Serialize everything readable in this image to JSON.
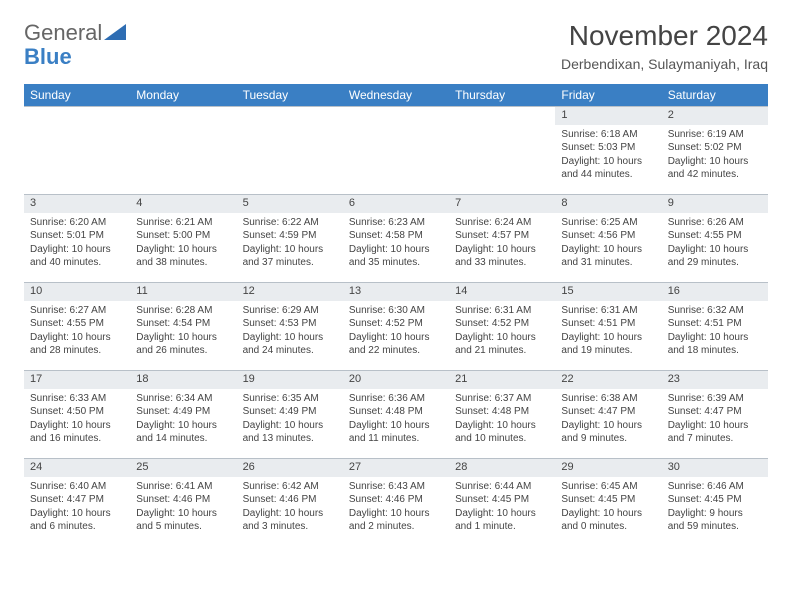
{
  "logo": {
    "text1": "General",
    "text2": "Blue"
  },
  "title": "November 2024",
  "location": "Derbendixan, Sulaymaniyah, Iraq",
  "colors": {
    "header_bg": "#3a7fc4",
    "header_text": "#ffffff",
    "daynum_bg": "#e9ecef",
    "border": "#b8c0c8",
    "text": "#444444",
    "background": "#ffffff"
  },
  "weekdays": [
    "Sunday",
    "Monday",
    "Tuesday",
    "Wednesday",
    "Thursday",
    "Friday",
    "Saturday"
  ],
  "weeks": [
    [
      null,
      null,
      null,
      null,
      null,
      {
        "n": "1",
        "sr": "Sunrise: 6:18 AM",
        "ss": "Sunset: 5:03 PM",
        "dl1": "Daylight: 10 hours",
        "dl2": "and 44 minutes."
      },
      {
        "n": "2",
        "sr": "Sunrise: 6:19 AM",
        "ss": "Sunset: 5:02 PM",
        "dl1": "Daylight: 10 hours",
        "dl2": "and 42 minutes."
      }
    ],
    [
      {
        "n": "3",
        "sr": "Sunrise: 6:20 AM",
        "ss": "Sunset: 5:01 PM",
        "dl1": "Daylight: 10 hours",
        "dl2": "and 40 minutes."
      },
      {
        "n": "4",
        "sr": "Sunrise: 6:21 AM",
        "ss": "Sunset: 5:00 PM",
        "dl1": "Daylight: 10 hours",
        "dl2": "and 38 minutes."
      },
      {
        "n": "5",
        "sr": "Sunrise: 6:22 AM",
        "ss": "Sunset: 4:59 PM",
        "dl1": "Daylight: 10 hours",
        "dl2": "and 37 minutes."
      },
      {
        "n": "6",
        "sr": "Sunrise: 6:23 AM",
        "ss": "Sunset: 4:58 PM",
        "dl1": "Daylight: 10 hours",
        "dl2": "and 35 minutes."
      },
      {
        "n": "7",
        "sr": "Sunrise: 6:24 AM",
        "ss": "Sunset: 4:57 PM",
        "dl1": "Daylight: 10 hours",
        "dl2": "and 33 minutes."
      },
      {
        "n": "8",
        "sr": "Sunrise: 6:25 AM",
        "ss": "Sunset: 4:56 PM",
        "dl1": "Daylight: 10 hours",
        "dl2": "and 31 minutes."
      },
      {
        "n": "9",
        "sr": "Sunrise: 6:26 AM",
        "ss": "Sunset: 4:55 PM",
        "dl1": "Daylight: 10 hours",
        "dl2": "and 29 minutes."
      }
    ],
    [
      {
        "n": "10",
        "sr": "Sunrise: 6:27 AM",
        "ss": "Sunset: 4:55 PM",
        "dl1": "Daylight: 10 hours",
        "dl2": "and 28 minutes."
      },
      {
        "n": "11",
        "sr": "Sunrise: 6:28 AM",
        "ss": "Sunset: 4:54 PM",
        "dl1": "Daylight: 10 hours",
        "dl2": "and 26 minutes."
      },
      {
        "n": "12",
        "sr": "Sunrise: 6:29 AM",
        "ss": "Sunset: 4:53 PM",
        "dl1": "Daylight: 10 hours",
        "dl2": "and 24 minutes."
      },
      {
        "n": "13",
        "sr": "Sunrise: 6:30 AM",
        "ss": "Sunset: 4:52 PM",
        "dl1": "Daylight: 10 hours",
        "dl2": "and 22 minutes."
      },
      {
        "n": "14",
        "sr": "Sunrise: 6:31 AM",
        "ss": "Sunset: 4:52 PM",
        "dl1": "Daylight: 10 hours",
        "dl2": "and 21 minutes."
      },
      {
        "n": "15",
        "sr": "Sunrise: 6:31 AM",
        "ss": "Sunset: 4:51 PM",
        "dl1": "Daylight: 10 hours",
        "dl2": "and 19 minutes."
      },
      {
        "n": "16",
        "sr": "Sunrise: 6:32 AM",
        "ss": "Sunset: 4:51 PM",
        "dl1": "Daylight: 10 hours",
        "dl2": "and 18 minutes."
      }
    ],
    [
      {
        "n": "17",
        "sr": "Sunrise: 6:33 AM",
        "ss": "Sunset: 4:50 PM",
        "dl1": "Daylight: 10 hours",
        "dl2": "and 16 minutes."
      },
      {
        "n": "18",
        "sr": "Sunrise: 6:34 AM",
        "ss": "Sunset: 4:49 PM",
        "dl1": "Daylight: 10 hours",
        "dl2": "and 14 minutes."
      },
      {
        "n": "19",
        "sr": "Sunrise: 6:35 AM",
        "ss": "Sunset: 4:49 PM",
        "dl1": "Daylight: 10 hours",
        "dl2": "and 13 minutes."
      },
      {
        "n": "20",
        "sr": "Sunrise: 6:36 AM",
        "ss": "Sunset: 4:48 PM",
        "dl1": "Daylight: 10 hours",
        "dl2": "and 11 minutes."
      },
      {
        "n": "21",
        "sr": "Sunrise: 6:37 AM",
        "ss": "Sunset: 4:48 PM",
        "dl1": "Daylight: 10 hours",
        "dl2": "and 10 minutes."
      },
      {
        "n": "22",
        "sr": "Sunrise: 6:38 AM",
        "ss": "Sunset: 4:47 PM",
        "dl1": "Daylight: 10 hours",
        "dl2": "and 9 minutes."
      },
      {
        "n": "23",
        "sr": "Sunrise: 6:39 AM",
        "ss": "Sunset: 4:47 PM",
        "dl1": "Daylight: 10 hours",
        "dl2": "and 7 minutes."
      }
    ],
    [
      {
        "n": "24",
        "sr": "Sunrise: 6:40 AM",
        "ss": "Sunset: 4:47 PM",
        "dl1": "Daylight: 10 hours",
        "dl2": "and 6 minutes."
      },
      {
        "n": "25",
        "sr": "Sunrise: 6:41 AM",
        "ss": "Sunset: 4:46 PM",
        "dl1": "Daylight: 10 hours",
        "dl2": "and 5 minutes."
      },
      {
        "n": "26",
        "sr": "Sunrise: 6:42 AM",
        "ss": "Sunset: 4:46 PM",
        "dl1": "Daylight: 10 hours",
        "dl2": "and 3 minutes."
      },
      {
        "n": "27",
        "sr": "Sunrise: 6:43 AM",
        "ss": "Sunset: 4:46 PM",
        "dl1": "Daylight: 10 hours",
        "dl2": "and 2 minutes."
      },
      {
        "n": "28",
        "sr": "Sunrise: 6:44 AM",
        "ss": "Sunset: 4:45 PM",
        "dl1": "Daylight: 10 hours",
        "dl2": "and 1 minute."
      },
      {
        "n": "29",
        "sr": "Sunrise: 6:45 AM",
        "ss": "Sunset: 4:45 PM",
        "dl1": "Daylight: 10 hours",
        "dl2": "and 0 minutes."
      },
      {
        "n": "30",
        "sr": "Sunrise: 6:46 AM",
        "ss": "Sunset: 4:45 PM",
        "dl1": "Daylight: 9 hours",
        "dl2": "and 59 minutes."
      }
    ]
  ]
}
